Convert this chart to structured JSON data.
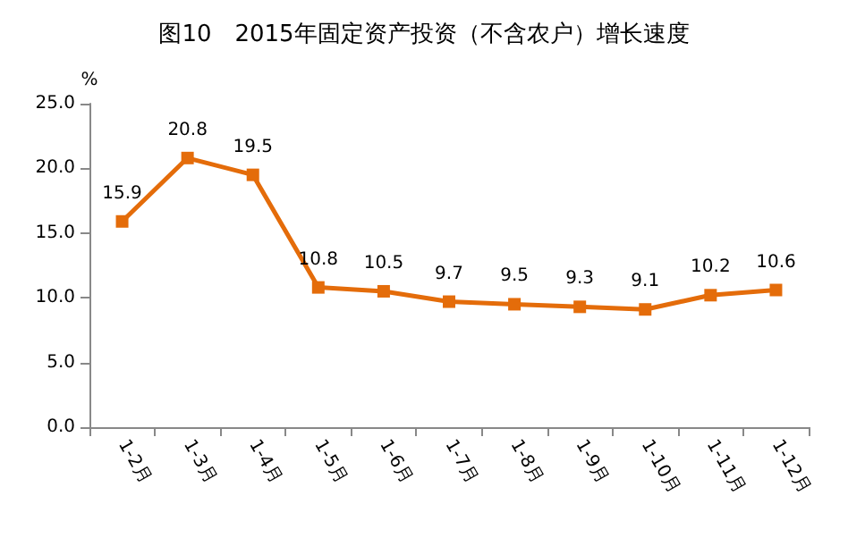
{
  "chart_data": {
    "type": "line",
    "title": "图10　2015年固定资产投资（不含农户）增长速度",
    "ylabel": "%",
    "categories": [
      "1-2月",
      "1-3月",
      "1-4月",
      "1-5月",
      "1-6月",
      "1-7月",
      "1-8月",
      "1-9月",
      "1-10月",
      "1-11月",
      "1-12月"
    ],
    "series": [
      {
        "color": "#e46c0a",
        "values": [
          15.9,
          20.8,
          19.5,
          10.8,
          10.5,
          9.7,
          9.5,
          9.3,
          9.1,
          10.2,
          10.6
        ]
      }
    ],
    "ylim": [
      0,
      25
    ],
    "yticks": [
      {
        "value": 0,
        "label": "0.0"
      },
      {
        "value": 5,
        "label": "5.0"
      },
      {
        "value": 10,
        "label": "10.0"
      },
      {
        "value": 15,
        "label": "15.0"
      },
      {
        "value": 20,
        "label": "20.0"
      },
      {
        "value": 25,
        "label": "25.0"
      }
    ],
    "grid": false,
    "marker": "square",
    "line_style": "solid",
    "data_labels": true
  }
}
